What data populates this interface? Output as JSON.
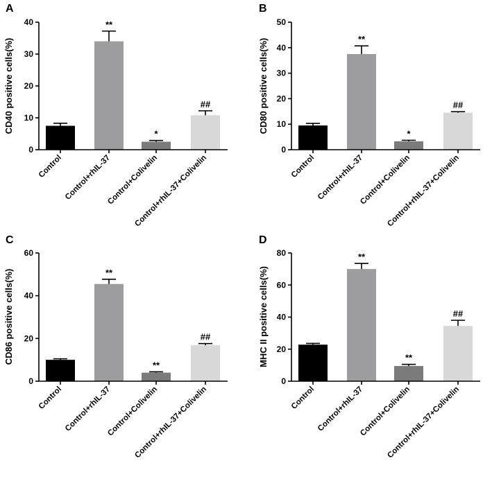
{
  "chart_data": [
    {
      "panel": "A",
      "type": "bar",
      "categories": [
        "Control",
        "Control+rhIL-37",
        "Control+Colivelin",
        "Control+rhIL-37+Colivelin"
      ],
      "values": [
        7.5,
        34,
        2.5,
        10.8
      ],
      "errors": [
        0.8,
        3.2,
        0.4,
        1.4
      ],
      "significance": [
        "",
        "**",
        "*",
        "##"
      ],
      "colors": [
        "#000000",
        "#9d9da0",
        "#7b7b7b",
        "#d8d8d8"
      ],
      "ylabel": "CD40 positive cells(%)",
      "ylim": [
        0,
        40
      ],
      "yticks": [
        0,
        10,
        20,
        30,
        40
      ],
      "xlabel": "",
      "grid": false
    },
    {
      "panel": "B",
      "type": "bar",
      "categories": [
        "Control",
        "Control+rhIL-37",
        "Control+Colivelin",
        "Control+rhIL-37+Colivelin"
      ],
      "values": [
        9.5,
        37.5,
        3.3,
        14.5
      ],
      "errors": [
        0.8,
        3.2,
        0.4,
        0.4
      ],
      "significance": [
        "",
        "**",
        "*",
        "##"
      ],
      "colors": [
        "#000000",
        "#9d9da0",
        "#7b7b7b",
        "#d8d8d8"
      ],
      "ylabel": "CD80 positive cells(%)",
      "ylim": [
        0,
        50
      ],
      "yticks": [
        0,
        10,
        20,
        30,
        40,
        50
      ],
      "xlabel": "",
      "grid": false
    },
    {
      "panel": "C",
      "type": "bar",
      "categories": [
        "Control",
        "Control+rhIL-37",
        "Control+Colivelin",
        "Control+rhIL-37+Colivelin"
      ],
      "values": [
        10,
        45.5,
        4,
        16.8
      ],
      "errors": [
        0.5,
        2.2,
        0.4,
        0.8
      ],
      "significance": [
        "",
        "**",
        "**",
        "##"
      ],
      "colors": [
        "#000000",
        "#9d9da0",
        "#7b7b7b",
        "#d8d8d8"
      ],
      "ylabel": "CD86 positive cells(%)",
      "ylim": [
        0,
        60
      ],
      "yticks": [
        0,
        20,
        40,
        60
      ],
      "xlabel": "",
      "grid": false
    },
    {
      "panel": "D",
      "type": "bar",
      "categories": [
        "Control",
        "Control+rhIL-37",
        "Control+Colivelin",
        "Control+rhIL-37+Colivelin"
      ],
      "values": [
        22.8,
        70,
        9.5,
        34.5
      ],
      "errors": [
        0.8,
        3.5,
        1.0,
        3.5
      ],
      "significance": [
        "",
        "**",
        "**",
        "##"
      ],
      "colors": [
        "#000000",
        "#9d9da0",
        "#7b7b7b",
        "#d8d8d8"
      ],
      "ylabel": "MHC II positive cells(%)",
      "ylim": [
        0,
        80
      ],
      "yticks": [
        0,
        20,
        40,
        60,
        80
      ],
      "xlabel": "",
      "grid": false
    }
  ]
}
